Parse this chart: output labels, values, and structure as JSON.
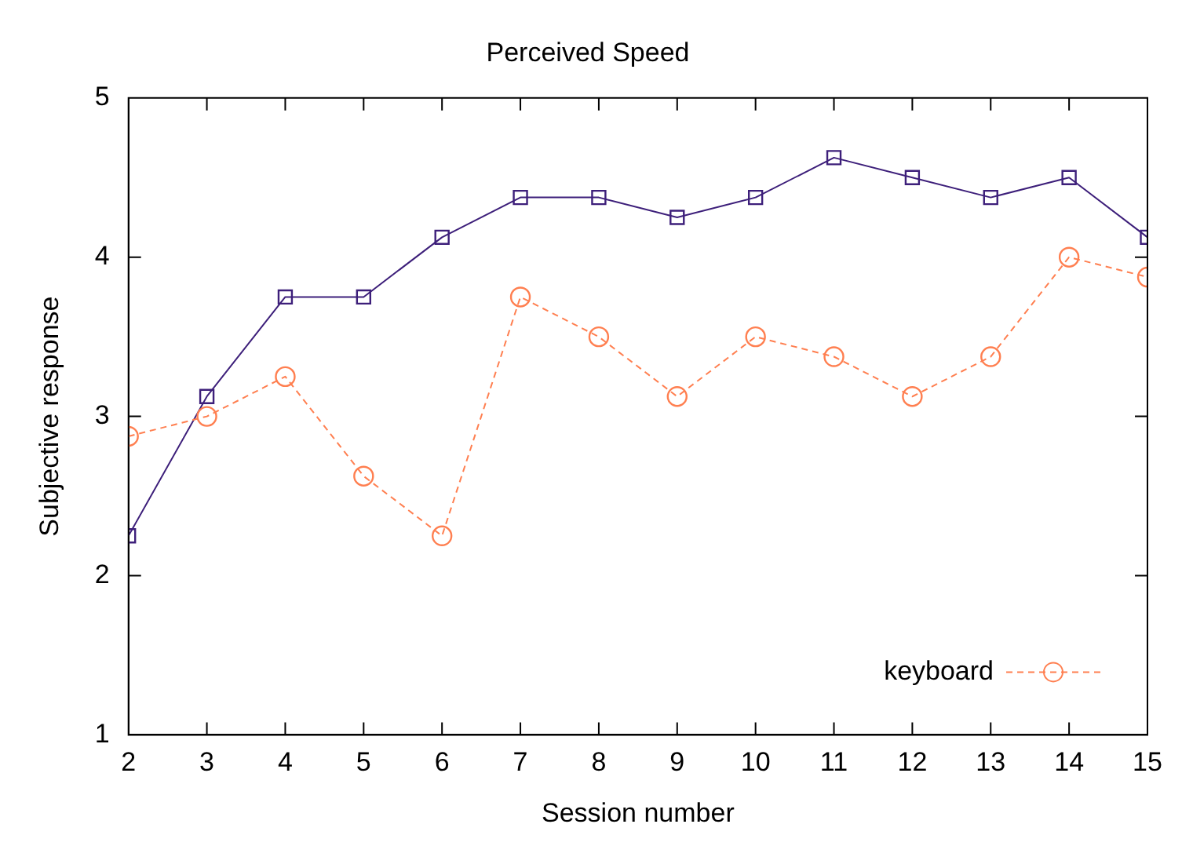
{
  "chart_data": {
    "type": "line",
    "title": "Perceived Speed",
    "xlabel": "Session number",
    "ylabel": "Subjective response",
    "x": [
      2,
      3,
      4,
      5,
      6,
      7,
      8,
      9,
      10,
      11,
      12,
      13,
      14,
      15
    ],
    "xlim": [
      2,
      15
    ],
    "xticks": [
      2,
      3,
      4,
      5,
      6,
      7,
      8,
      9,
      10,
      11,
      12,
      13,
      14,
      15
    ],
    "ylim": [
      1,
      5
    ],
    "yticks": [
      1,
      2,
      3,
      4,
      5
    ],
    "legend": "bottom right",
    "series": [
      {
        "name": "keyboard",
        "color": "#ff7f50",
        "marker": "circle",
        "line_style": "dashed",
        "values": [
          2.875,
          3.0,
          3.25,
          2.625,
          2.25,
          3.75,
          3.5,
          3.125,
          3.5,
          3.375,
          3.125,
          3.375,
          4.0,
          3.875
        ]
      },
      {
        "color": "#3d1f7a",
        "marker": "square",
        "line_style": "solid",
        "values": [
          2.25,
          3.125,
          3.75,
          3.75,
          4.125,
          4.375,
          4.375,
          4.25,
          4.375,
          4.625,
          4.5,
          4.375,
          4.5,
          4.125
        ]
      }
    ]
  }
}
